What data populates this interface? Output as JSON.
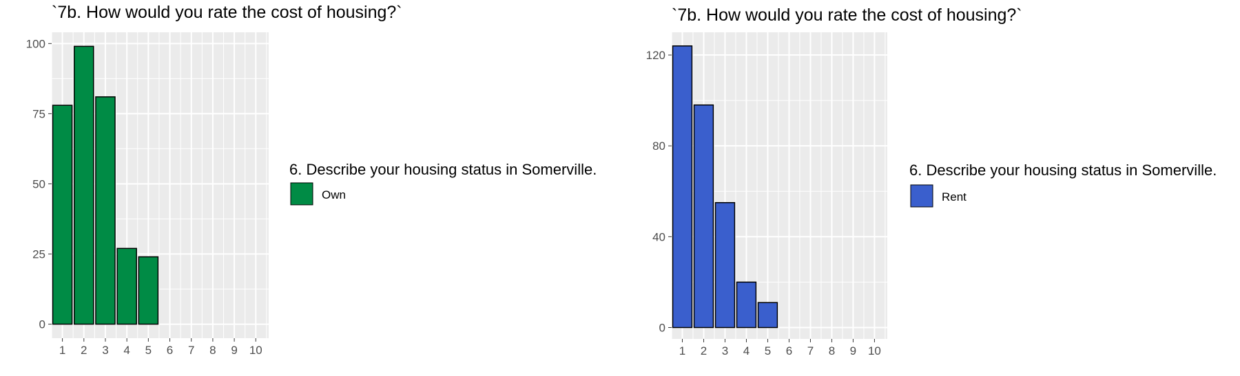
{
  "chart_data": [
    {
      "type": "bar",
      "title": "`7b. How would you rate the cost of housing?`",
      "xlabel": "",
      "ylabel": "",
      "categories": [
        "1",
        "2",
        "3",
        "4",
        "5",
        "6",
        "7",
        "8",
        "9",
        "10"
      ],
      "series": [
        {
          "name": "Own",
          "values": [
            78,
            99,
            81,
            27,
            24,
            0,
            0,
            0,
            0,
            0
          ]
        }
      ],
      "ylim": [
        -5,
        104
      ],
      "yticks": [
        0,
        25,
        50,
        75,
        100
      ],
      "legend": {
        "title": "6. Describe your housing status in Somerville.",
        "placement": "right"
      },
      "colors": {
        "bar": "#008b45",
        "panel": "#ebebeb",
        "grid": "#ffffff"
      },
      "grid": true
    },
    {
      "type": "bar",
      "title": "`7b. How would you rate the cost of housing?`",
      "xlabel": "",
      "ylabel": "",
      "categories": [
        "1",
        "2",
        "3",
        "4",
        "5",
        "6",
        "7",
        "8",
        "9",
        "10"
      ],
      "series": [
        {
          "name": "Rent",
          "values": [
            124,
            98,
            55,
            20,
            11,
            0,
            0,
            0,
            0,
            0
          ]
        }
      ],
      "ylim": [
        -5,
        130
      ],
      "yticks": [
        0,
        40,
        80,
        120
      ],
      "legend": {
        "title": "6. Describe your housing status in Somerville.",
        "placement": "right"
      },
      "colors": {
        "bar": "#3a5fcd",
        "panel": "#ebebeb",
        "grid": "#ffffff"
      },
      "grid": true
    }
  ]
}
